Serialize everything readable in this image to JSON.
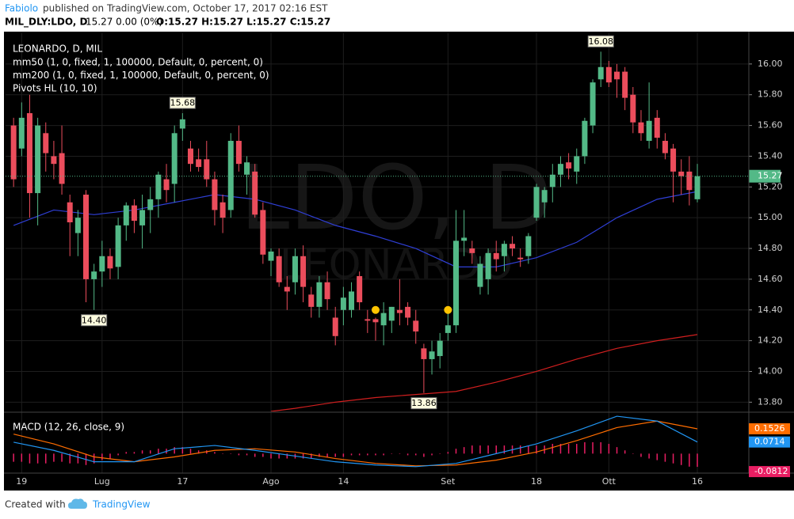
{
  "header": {
    "author": "Fabiolo",
    "published": "published on TradingView.com, October 17, 2017 02:16 EST",
    "symbol": "MIL_DLY:LDO, D",
    "change": "15.27 0.00 (0%)",
    "ohlc": "O:15.27 H:15.27 L:15.27 C:15.27"
  },
  "footer": {
    "created_with": "Created with",
    "brand": "TradingView"
  },
  "chart_data": [
    {
      "type": "candlestick",
      "title": "LEONARDO, D, MIL",
      "watermark": {
        "symbol": "LDO, D",
        "name": "LEONARDO"
      },
      "up_color": "#53b987",
      "down_color": "#eb4d5c",
      "xlim": [
        -1,
        91.4
      ],
      "xticks": [
        {
          "value": 1,
          "label": "19"
        },
        {
          "value": 11,
          "label": "Lug"
        },
        {
          "value": 21,
          "label": "17"
        },
        {
          "value": 32,
          "label": "Ago"
        },
        {
          "value": 41,
          "label": "14"
        },
        {
          "value": 54,
          "label": "Set"
        },
        {
          "value": 65,
          "label": "18"
        },
        {
          "value": 74,
          "label": "Ott"
        },
        {
          "value": 85,
          "label": "16"
        }
      ],
      "ylim": [
        13.74,
        16.2
      ],
      "yticks": [
        {
          "value": 13.8,
          "label": "13.80"
        },
        {
          "value": 14,
          "label": "14.00"
        },
        {
          "value": 14.2,
          "label": "14.20"
        },
        {
          "value": 14.4,
          "label": "14.40"
        },
        {
          "value": 14.6,
          "label": "14.60"
        },
        {
          "value": 14.8,
          "label": "14.80"
        },
        {
          "value": 15,
          "label": "15.00"
        },
        {
          "value": 15.2,
          "label": "15.20"
        },
        {
          "value": 15.4,
          "label": "15.40"
        },
        {
          "value": 15.6,
          "label": "15.60"
        },
        {
          "value": 15.8,
          "label": "15.80"
        },
        {
          "value": 16,
          "label": "16.00"
        }
      ],
      "grid": true,
      "last_price": 15.27,
      "ohlc": {
        "open": [
          15.6,
          15.45,
          15.68,
          15.16,
          15.55,
          15.4,
          15.42,
          15.1,
          14.9,
          15.15,
          14.6,
          14.65,
          14.75,
          14.68,
          14.95,
          15.08,
          14.95,
          15.05,
          15.12,
          15.25,
          15.22,
          15.58,
          15.45,
          15.38,
          15.38,
          15.25,
          15.1,
          15.05,
          15.5,
          15.28,
          15.3,
          15.05,
          14.72,
          14.75,
          14.55,
          14.58,
          14.75,
          14.5,
          14.42,
          14.58,
          14.35,
          14.4,
          14.4,
          14.62,
          14.34,
          14.34,
          14.3,
          14.33,
          14.4,
          14.42,
          14.33,
          14.15,
          14.08,
          14.1,
          14.25,
          14.3,
          14.85,
          14.8,
          14.55,
          14.6,
          14.77,
          14.75,
          14.83,
          14.74,
          14.75,
          15.0,
          15.1,
          15.2,
          15.28,
          15.36,
          15.3,
          15.4,
          15.6,
          15.9,
          15.98,
          15.95,
          15.95,
          15.8,
          15.62,
          15.5,
          15.65,
          15.5,
          15.45,
          15.3,
          15.3,
          15.12
        ],
        "high": [
          15.65,
          15.75,
          15.8,
          15.65,
          15.62,
          15.5,
          15.6,
          15.15,
          15.05,
          15.18,
          14.7,
          14.85,
          14.8,
          15.0,
          15.1,
          15.12,
          15.15,
          15.2,
          15.3,
          15.35,
          15.6,
          15.68,
          15.5,
          15.45,
          15.5,
          15.3,
          15.15,
          15.55,
          15.6,
          15.4,
          15.35,
          15.1,
          14.8,
          14.8,
          14.62,
          14.8,
          14.82,
          14.55,
          14.62,
          14.65,
          14.42,
          14.55,
          14.58,
          14.65,
          14.4,
          14.35,
          14.45,
          14.42,
          14.6,
          14.45,
          14.4,
          14.18,
          14.2,
          14.25,
          14.4,
          15.05,
          15.05,
          14.85,
          14.75,
          14.8,
          14.85,
          14.85,
          14.88,
          14.8,
          14.9,
          15.22,
          15.2,
          15.35,
          15.4,
          15.42,
          15.45,
          15.65,
          15.9,
          16.08,
          16.02,
          16.0,
          15.98,
          15.85,
          15.7,
          15.88,
          15.7,
          15.55,
          15.48,
          15.38,
          15.4,
          15.35
        ],
        "low": [
          15.2,
          15.4,
          15.0,
          14.95,
          15.3,
          15.25,
          15.15,
          14.75,
          14.75,
          14.45,
          14.4,
          14.55,
          14.6,
          14.6,
          14.85,
          14.9,
          14.8,
          14.9,
          15.0,
          15.1,
          15.1,
          15.5,
          15.3,
          15.3,
          15.2,
          14.95,
          14.9,
          15.0,
          15.3,
          15.15,
          15.0,
          14.7,
          14.62,
          14.55,
          14.4,
          14.5,
          14.45,
          14.35,
          14.35,
          14.4,
          14.17,
          14.3,
          14.35,
          14.4,
          14.25,
          14.2,
          14.17,
          14.25,
          14.3,
          14.3,
          14.18,
          13.86,
          13.98,
          14.02,
          14.2,
          14.25,
          14.75,
          14.7,
          14.5,
          14.5,
          14.65,
          14.65,
          14.75,
          14.68,
          14.7,
          14.98,
          15.0,
          15.1,
          15.2,
          15.25,
          15.22,
          15.35,
          15.55,
          15.85,
          15.85,
          15.78,
          15.7,
          15.55,
          15.5,
          15.45,
          15.45,
          15.38,
          15.1,
          15.15,
          15.08,
          15.1
        ],
        "close": [
          15.25,
          15.65,
          15.16,
          15.6,
          15.42,
          15.35,
          15.22,
          14.97,
          15.0,
          14.6,
          14.65,
          14.75,
          14.67,
          14.95,
          15.08,
          14.98,
          15.05,
          15.12,
          15.28,
          15.18,
          15.55,
          15.64,
          15.35,
          15.33,
          15.25,
          15.05,
          15.0,
          15.5,
          15.35,
          15.36,
          15.02,
          14.76,
          14.78,
          14.58,
          14.52,
          14.75,
          14.55,
          14.42,
          14.58,
          14.47,
          14.23,
          14.48,
          14.52,
          14.45,
          14.33,
          14.32,
          14.38,
          14.42,
          14.38,
          14.35,
          14.26,
          14.08,
          14.13,
          14.2,
          14.3,
          14.85,
          14.87,
          14.77,
          14.7,
          14.77,
          14.73,
          14.83,
          14.8,
          14.73,
          14.88,
          15.2,
          15.18,
          15.28,
          15.35,
          15.32,
          15.4,
          15.63,
          15.88,
          15.98,
          15.88,
          15.9,
          15.78,
          15.62,
          15.55,
          15.63,
          15.52,
          15.42,
          15.3,
          15.27,
          15.18,
          15.27
        ]
      },
      "lines": [
        {
          "name": "mm50 (1, 0, fixed, 1, 100000, Default, 0, percent, 0)",
          "color": "#2f3fd6",
          "x": [
            0,
            5,
            10,
            15,
            20,
            25,
            30,
            35,
            40,
            45,
            50,
            55,
            60,
            65,
            70,
            75,
            80,
            85
          ],
          "values": [
            14.95,
            15.05,
            15.02,
            15.05,
            15.1,
            15.15,
            15.12,
            15.05,
            14.95,
            14.88,
            14.8,
            14.68,
            14.68,
            14.74,
            14.84,
            15.0,
            15.12,
            15.17
          ]
        },
        {
          "name": "mm200 (1, 0, fixed, 1, 100000, Default, 0, percent, 0)",
          "color": "#d11f1f",
          "x": [
            32,
            35,
            40,
            45,
            50,
            55,
            60,
            65,
            70,
            75,
            80,
            85
          ],
          "values": [
            13.74,
            13.76,
            13.8,
            13.83,
            13.85,
            13.87,
            13.93,
            14.0,
            14.08,
            14.15,
            14.2,
            14.24
          ]
        }
      ],
      "pivots": {
        "name": "Pivots HL (10, 10)",
        "x": [
          10,
          21,
          51,
          73
        ],
        "values": [
          14.4,
          15.68,
          13.86,
          16.08
        ],
        "value_labels": [
          "14.40",
          "15.68",
          "13.86",
          "16.08"
        ]
      },
      "markers": {
        "color": "#ffc400",
        "x": [
          45,
          54
        ],
        "values": [
          14.4,
          14.4
        ]
      }
    },
    {
      "type": "macd",
      "title": "MACD (12, 26, close, 9)",
      "xlim": [
        -1,
        91.4
      ],
      "ylim": [
        -0.11,
        0.24
      ],
      "histogram": {
        "color": "#e91e63",
        "values": [
          -0.05,
          -0.05,
          -0.06,
          -0.06,
          -0.06,
          -0.05,
          -0.05,
          -0.06,
          -0.06,
          -0.07,
          -0.06,
          -0.04,
          -0.03,
          -0.01,
          0.01,
          0.01,
          0.02,
          0.02,
          0.03,
          0.03,
          0.04,
          0.04,
          0.03,
          0.02,
          0.02,
          0.01,
          0.0,
          0.0,
          -0.01,
          -0.01,
          -0.02,
          -0.02,
          -0.03,
          -0.03,
          -0.03,
          -0.03,
          -0.03,
          -0.03,
          -0.02,
          -0.02,
          -0.02,
          -0.02,
          -0.01,
          -0.01,
          -0.01,
          -0.01,
          -0.01,
          0.0,
          0.0,
          -0.01,
          -0.01,
          -0.02,
          -0.01,
          0.0,
          0.01,
          0.03,
          0.04,
          0.05,
          0.05,
          0.05,
          0.05,
          0.05,
          0.05,
          0.05,
          0.05,
          0.05,
          0.05,
          0.06,
          0.06,
          0.06,
          0.06,
          0.07,
          0.07,
          0.07,
          0.06,
          0.04,
          0.02,
          0.0,
          -0.02,
          -0.03,
          -0.04,
          -0.05,
          -0.06,
          -0.07,
          -0.08,
          -0.0812
        ]
      },
      "series": [
        {
          "color": "#ff6d00",
          "x": [
            0,
            5,
            10,
            15,
            20,
            25,
            30,
            35,
            40,
            45,
            50,
            55,
            60,
            65,
            70,
            75,
            80,
            85
          ],
          "values": [
            0.12,
            0.06,
            -0.02,
            -0.05,
            -0.02,
            0.02,
            0.03,
            0.01,
            -0.03,
            -0.06,
            -0.075,
            -0.07,
            -0.04,
            0.01,
            0.08,
            0.16,
            0.2,
            0.1526
          ]
        },
        {
          "color": "#2196f3",
          "x": [
            0,
            5,
            10,
            15,
            20,
            25,
            30,
            35,
            40,
            45,
            50,
            55,
            60,
            65,
            70,
            75,
            80,
            85
          ],
          "values": [
            0.07,
            0.02,
            -0.05,
            -0.05,
            0.03,
            0.05,
            0.02,
            -0.015,
            -0.05,
            -0.07,
            -0.08,
            -0.06,
            0.0,
            0.06,
            0.14,
            0.23,
            0.2,
            0.0714
          ]
        }
      ]
    }
  ]
}
